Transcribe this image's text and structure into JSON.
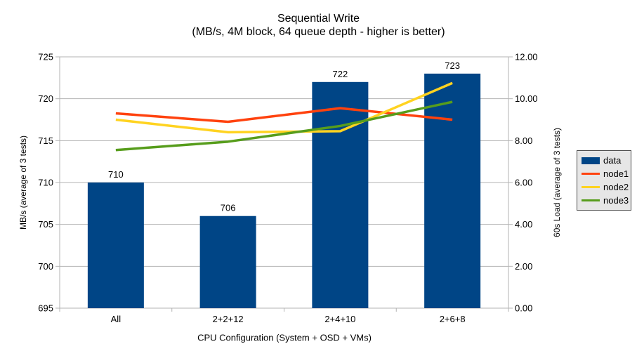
{
  "chart": {
    "title": "Sequential Write",
    "subtitle": "(MB/s, 4M block, 64 queue depth - higher is better)",
    "x_axis_title": "CPU Configuration (System + OSD + VMs)",
    "y_left_title": "MB/s (average of 3 tests)",
    "y_right_title": "60s Load (average of 3 tests)"
  },
  "chart_data": {
    "type": "bar+line",
    "categories": [
      "All",
      "2+2+12",
      "2+4+10",
      "2+6+8"
    ],
    "bar_series": {
      "name": "data",
      "axis": "left",
      "color": "#004586",
      "values": [
        710,
        706,
        722,
        723
      ],
      "data_labels": [
        "710",
        "706",
        "722",
        "723"
      ]
    },
    "line_series": [
      {
        "name": "node1",
        "axis": "right",
        "color": "#ff420e",
        "values": [
          9.3,
          8.9,
          9.55,
          9.0
        ]
      },
      {
        "name": "node2",
        "axis": "right",
        "color": "#ffd320",
        "values": [
          9.0,
          8.4,
          8.45,
          10.75
        ]
      },
      {
        "name": "node3",
        "axis": "right",
        "color": "#579d1c",
        "values": [
          7.55,
          7.95,
          8.7,
          9.85
        ]
      }
    ],
    "left_axis": {
      "min": 695,
      "max": 725,
      "step": 5,
      "tick_labels": [
        "725",
        "720",
        "715",
        "710",
        "705",
        "700",
        "695"
      ]
    },
    "right_axis": {
      "min": 0,
      "max": 12,
      "step": 2,
      "tick_labels": [
        "12.00",
        "10.00",
        "8.00",
        "6.00",
        "4.00",
        "2.00",
        "0.00"
      ]
    },
    "grid": true,
    "legend_position": "right"
  },
  "legend": {
    "items": [
      {
        "label": "data",
        "type": "bar",
        "color": "#004586"
      },
      {
        "label": "node1",
        "type": "line",
        "color": "#ff420e"
      },
      {
        "label": "node2",
        "type": "line",
        "color": "#ffd320"
      },
      {
        "label": "node3",
        "type": "line",
        "color": "#579d1c"
      }
    ]
  }
}
